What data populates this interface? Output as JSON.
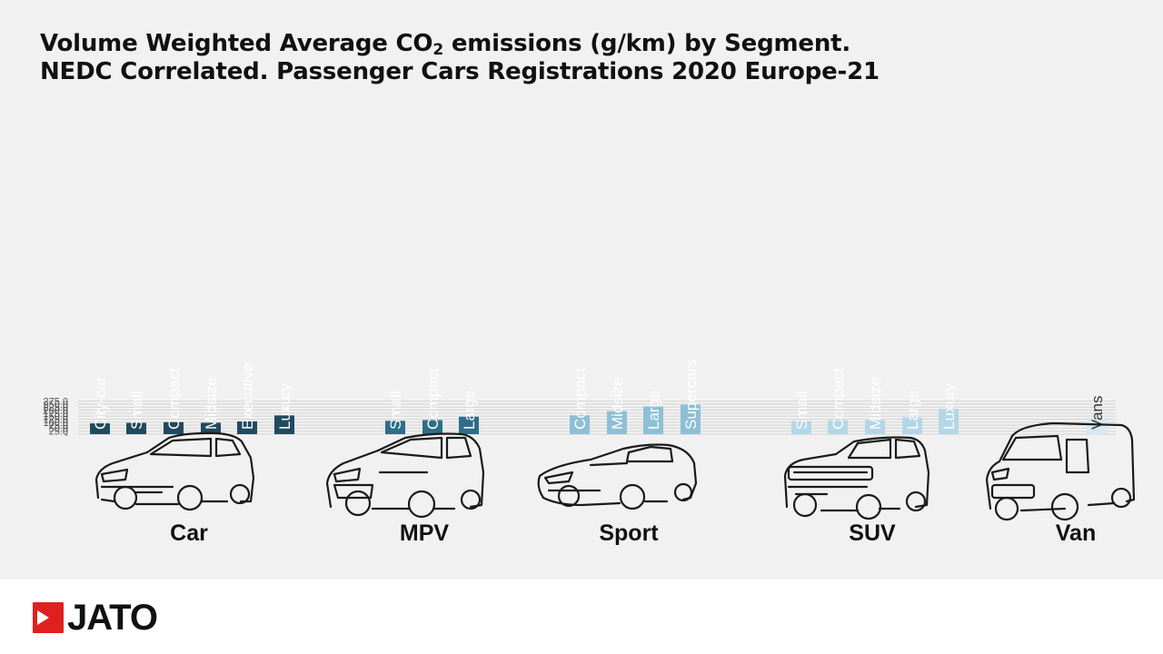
{
  "title": {
    "line1_before": "Volume Weighted Average CO",
    "line1_sub": "2",
    "line1_after": " emissions (g/km) by Segment.",
    "line2": "NEDC Correlated. Passenger Cars Registrations 2020 Europe-21"
  },
  "brand": {
    "name": "JATO",
    "color": "#e02020"
  },
  "chart_data": {
    "type": "bar",
    "ylim": [
      0,
      275
    ],
    "yticks": [
      "-",
      "25.0",
      "50.0",
      "75.0",
      "100.0",
      "125.0",
      "150.0",
      "175.0",
      "200.0",
      "225.0",
      "250.0",
      "275.0"
    ],
    "grid": true,
    "groups": [
      {
        "name": "Car",
        "color": "#214a5e",
        "categories": [
          "City-car",
          "Small",
          "Compact",
          "Midsize",
          "Executive",
          "Luxury"
        ],
        "values": [
          90,
          94,
          100,
          95,
          106,
          156
        ],
        "icon": "hatchback-car-icon"
      },
      {
        "name": "MPV",
        "color": "#2e6e88",
        "categories": [
          "Small",
          "Compact",
          "Large"
        ],
        "values": [
          111,
          117,
          145
        ],
        "icon": "mpv-car-icon"
      },
      {
        "name": "Sport",
        "color": "#8ebfd6",
        "categories": [
          "Compact",
          "Midsize",
          "Large",
          "Supercars"
        ],
        "values": [
          157,
          191,
          230,
          245
        ],
        "icon": "sports-car-icon"
      },
      {
        "name": "SUV",
        "color": "#b3d7e7",
        "categories": [
          "Small",
          "Compact",
          "Midsize",
          "Large",
          "Luxury"
        ],
        "values": [
          109,
          115,
          116,
          139,
          210
        ],
        "icon": "suv-car-icon"
      },
      {
        "name": "Van",
        "color": "#d6e8f1",
        "categories": [
          "Vans"
        ],
        "values": [
          135
        ],
        "icon": "van-icon"
      }
    ]
  }
}
